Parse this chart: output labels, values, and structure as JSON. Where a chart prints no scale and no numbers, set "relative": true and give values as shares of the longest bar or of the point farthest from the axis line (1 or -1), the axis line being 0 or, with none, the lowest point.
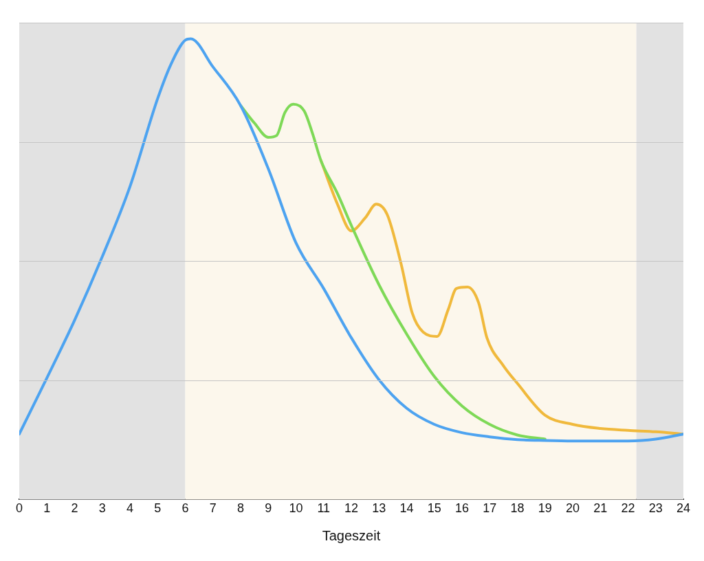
{
  "chart_data": {
    "type": "line",
    "xlabel": "Tageszeit",
    "relative": true,
    "xlim": [
      0,
      24
    ],
    "xticks": [
      0,
      1,
      2,
      3,
      4,
      5,
      6,
      7,
      8,
      9,
      10,
      11,
      12,
      13,
      14,
      15,
      16,
      17,
      18,
      19,
      20,
      21,
      22,
      23,
      24
    ],
    "grid": "y",
    "legend": false,
    "marker": "none",
    "line_style": "solid",
    "bands": [
      {
        "axis": "x",
        "from": 0,
        "to": 6,
        "color": "#e2e2e2"
      },
      {
        "axis": "x",
        "from": 6,
        "to": 22.3,
        "color": "#fcf7ec"
      },
      {
        "axis": "x",
        "from": 22.3,
        "to": 24,
        "color": "#e2e2e2"
      }
    ],
    "series": [
      {
        "color": "#f0b93c",
        "x": [
          10.9,
          11.5,
          12,
          12.5,
          12.9,
          13.3,
          13.8,
          14.2,
          14.6,
          15.1,
          15.5,
          15.8,
          16.2,
          16.6,
          16.9,
          17.5,
          18,
          19,
          20,
          21,
          22,
          23,
          24
        ],
        "values": [
          0.736,
          0.641,
          0.583,
          0.611,
          0.641,
          0.618,
          0.511,
          0.405,
          0.363,
          0.354,
          0.412,
          0.458,
          0.461,
          0.427,
          0.351,
          0.29,
          0.252,
          0.183,
          0.163,
          0.154,
          0.15,
          0.147,
          0.142
        ]
      },
      {
        "color": "#7ed957",
        "x": [
          8,
          8.5,
          9,
          9.3,
          9.6,
          9.9,
          10.3,
          10.6,
          10.9,
          11.5,
          12,
          13,
          14,
          15,
          16,
          17,
          18,
          19
        ],
        "values": [
          0.855,
          0.817,
          0.786,
          0.79,
          0.84,
          0.858,
          0.843,
          0.794,
          0.736,
          0.664,
          0.595,
          0.466,
          0.359,
          0.267,
          0.203,
          0.163,
          0.14,
          0.131
        ]
      },
      {
        "color": "#4da3f0",
        "x": [
          0,
          1,
          2,
          3,
          4,
          5,
          5.5,
          6,
          6.2,
          7,
          8,
          9,
          10,
          11,
          12,
          13,
          14,
          15,
          16,
          17,
          18,
          19,
          20,
          22,
          23,
          24
        ],
        "values": [
          0.142,
          0.264,
          0.389,
          0.527,
          0.679,
          0.87,
          0.947,
          0.997,
          1,
          0.939,
          0.855,
          0.718,
          0.557,
          0.458,
          0.351,
          0.26,
          0.198,
          0.163,
          0.145,
          0.136,
          0.13,
          0.128,
          0.127,
          0.127,
          0.131,
          0.142
        ]
      }
    ]
  }
}
